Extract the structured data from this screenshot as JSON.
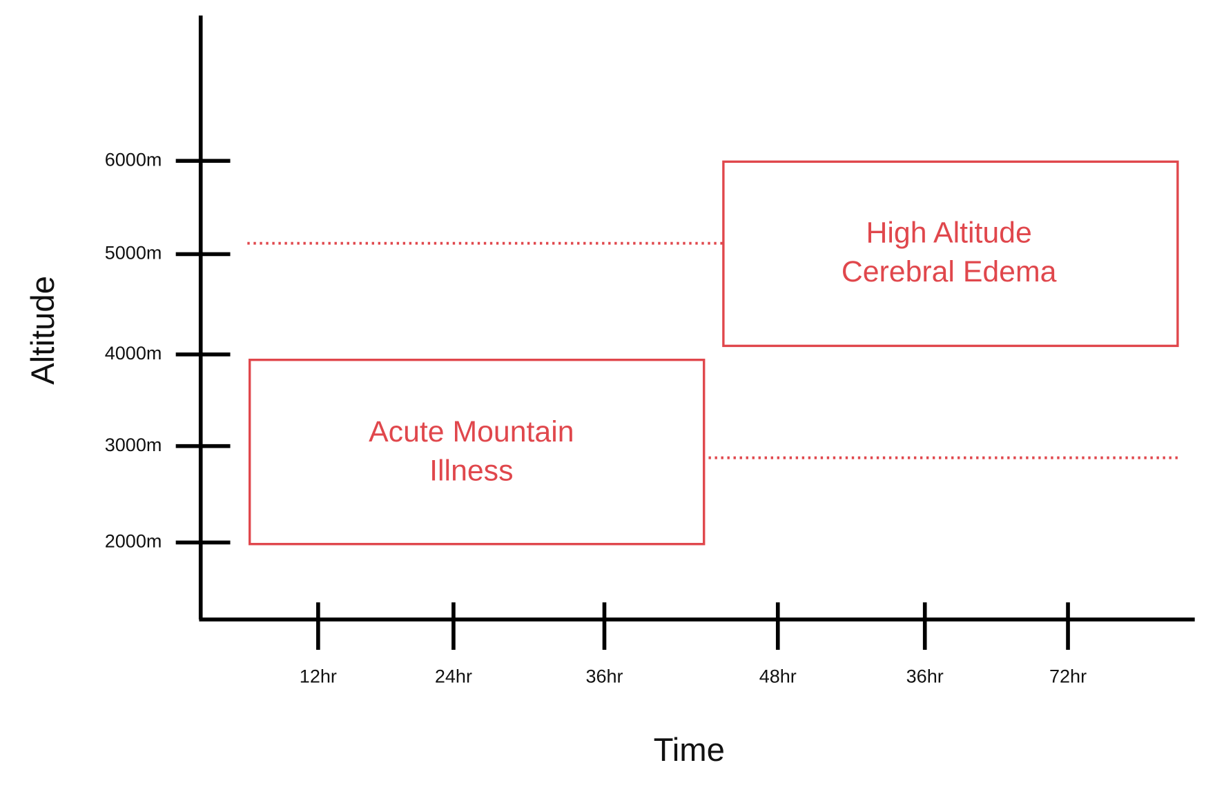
{
  "y_axis": {
    "label": "Altitude",
    "ticks": [
      "6000m",
      "5000m",
      "4000m",
      "3000m",
      "2000m"
    ]
  },
  "x_axis": {
    "label": "Time",
    "ticks": [
      "12hr",
      "24hr",
      "36hr",
      "48hr",
      "36hr",
      "72hr"
    ]
  },
  "boxes": [
    {
      "lines": [
        "High Altitude",
        "Cerebral Edema"
      ]
    },
    {
      "lines": [
        "Acute Mountain",
        "Illness"
      ]
    }
  ]
}
